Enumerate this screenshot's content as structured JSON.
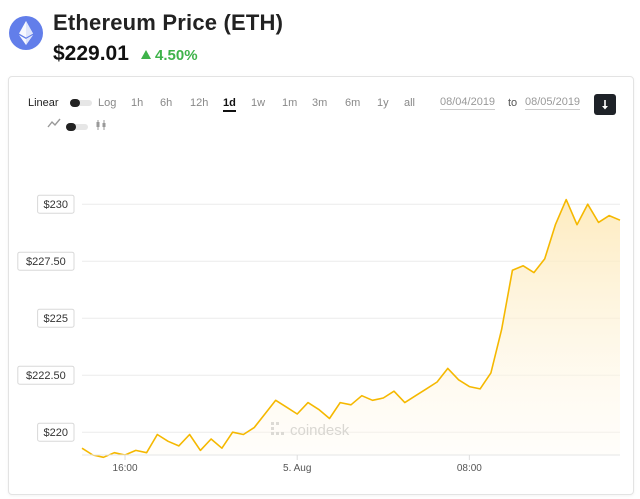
{
  "header": {
    "title": "Ethereum Price (ETH)",
    "price": "$229.01",
    "change": "4.50%",
    "logo_icon": "ethereum-icon",
    "brand_color": "#627eea",
    "change_color": "#3eb34a"
  },
  "controls": {
    "scale_linear": "Linear",
    "scale_log": "Log",
    "ranges": [
      "1h",
      "6h",
      "12h",
      "1d",
      "1w",
      "1m",
      "3m",
      "6m",
      "1y",
      "all"
    ],
    "active_range": "1d",
    "date_from": "08/04/2019",
    "date_to_label": "to",
    "date_to": "08/05/2019",
    "download_icon": "download-icon",
    "line_chart_icon": "line-chart-icon",
    "candlestick_icon": "candlestick-icon"
  },
  "watermark": "coindesk",
  "chart_data": {
    "type": "area",
    "title": "",
    "xlabel": "",
    "ylabel": "",
    "x_ticks": [
      "16:00",
      "5. Aug",
      "08:00"
    ],
    "y_ticks": [
      220,
      222.5,
      225,
      227.5,
      230
    ],
    "y_tick_labels": [
      "$220",
      "$222.50",
      "$225",
      "$227.50",
      "$230"
    ],
    "ylim": [
      219.0,
      231.5
    ],
    "x_range": [
      "2019-08-04 14:00",
      "2019-08-05 15:00"
    ],
    "grid": true,
    "line_color": "#f5b800",
    "fill_color": "#fdf3d6",
    "series": [
      {
        "x": [
          "2019-08-04 14:00",
          "2019-08-04 14:30",
          "2019-08-04 15:00",
          "2019-08-04 15:30",
          "2019-08-04 16:00",
          "2019-08-04 16:30",
          "2019-08-04 17:00",
          "2019-08-04 17:30",
          "2019-08-04 18:00",
          "2019-08-04 18:30",
          "2019-08-04 19:00",
          "2019-08-04 19:30",
          "2019-08-04 20:00",
          "2019-08-04 20:30",
          "2019-08-04 21:00",
          "2019-08-04 21:30",
          "2019-08-04 22:00",
          "2019-08-04 22:30",
          "2019-08-04 23:00",
          "2019-08-04 23:30",
          "2019-08-05 00:00",
          "2019-08-05 00:30",
          "2019-08-05 01:00",
          "2019-08-05 01:30",
          "2019-08-05 02:00",
          "2019-08-05 02:30",
          "2019-08-05 03:00",
          "2019-08-05 03:30",
          "2019-08-05 04:00",
          "2019-08-05 04:30",
          "2019-08-05 05:00",
          "2019-08-05 05:30",
          "2019-08-05 06:00",
          "2019-08-05 06:30",
          "2019-08-05 07:00",
          "2019-08-05 07:30",
          "2019-08-05 08:00",
          "2019-08-05 08:30",
          "2019-08-05 09:00",
          "2019-08-05 09:30",
          "2019-08-05 10:00",
          "2019-08-05 10:30",
          "2019-08-05 11:00",
          "2019-08-05 11:30",
          "2019-08-05 12:00",
          "2019-08-05 12:30",
          "2019-08-05 13:00",
          "2019-08-05 13:30",
          "2019-08-05 14:00",
          "2019-08-05 14:30",
          "2019-08-05 15:00"
        ],
        "values": [
          219.3,
          219.0,
          218.9,
          219.1,
          219.0,
          219.2,
          219.1,
          219.9,
          219.6,
          219.4,
          219.9,
          219.2,
          219.7,
          219.3,
          220.0,
          219.9,
          220.2,
          220.8,
          221.4,
          221.1,
          220.8,
          221.3,
          221.0,
          220.6,
          221.3,
          221.2,
          221.6,
          221.4,
          221.5,
          221.8,
          221.3,
          221.6,
          221.9,
          222.2,
          222.8,
          222.3,
          222.0,
          221.9,
          222.6,
          224.5,
          227.1,
          227.3,
          227.0,
          227.6,
          229.1,
          230.2,
          229.1,
          230.0,
          229.2,
          229.5,
          229.3
        ]
      }
    ]
  }
}
